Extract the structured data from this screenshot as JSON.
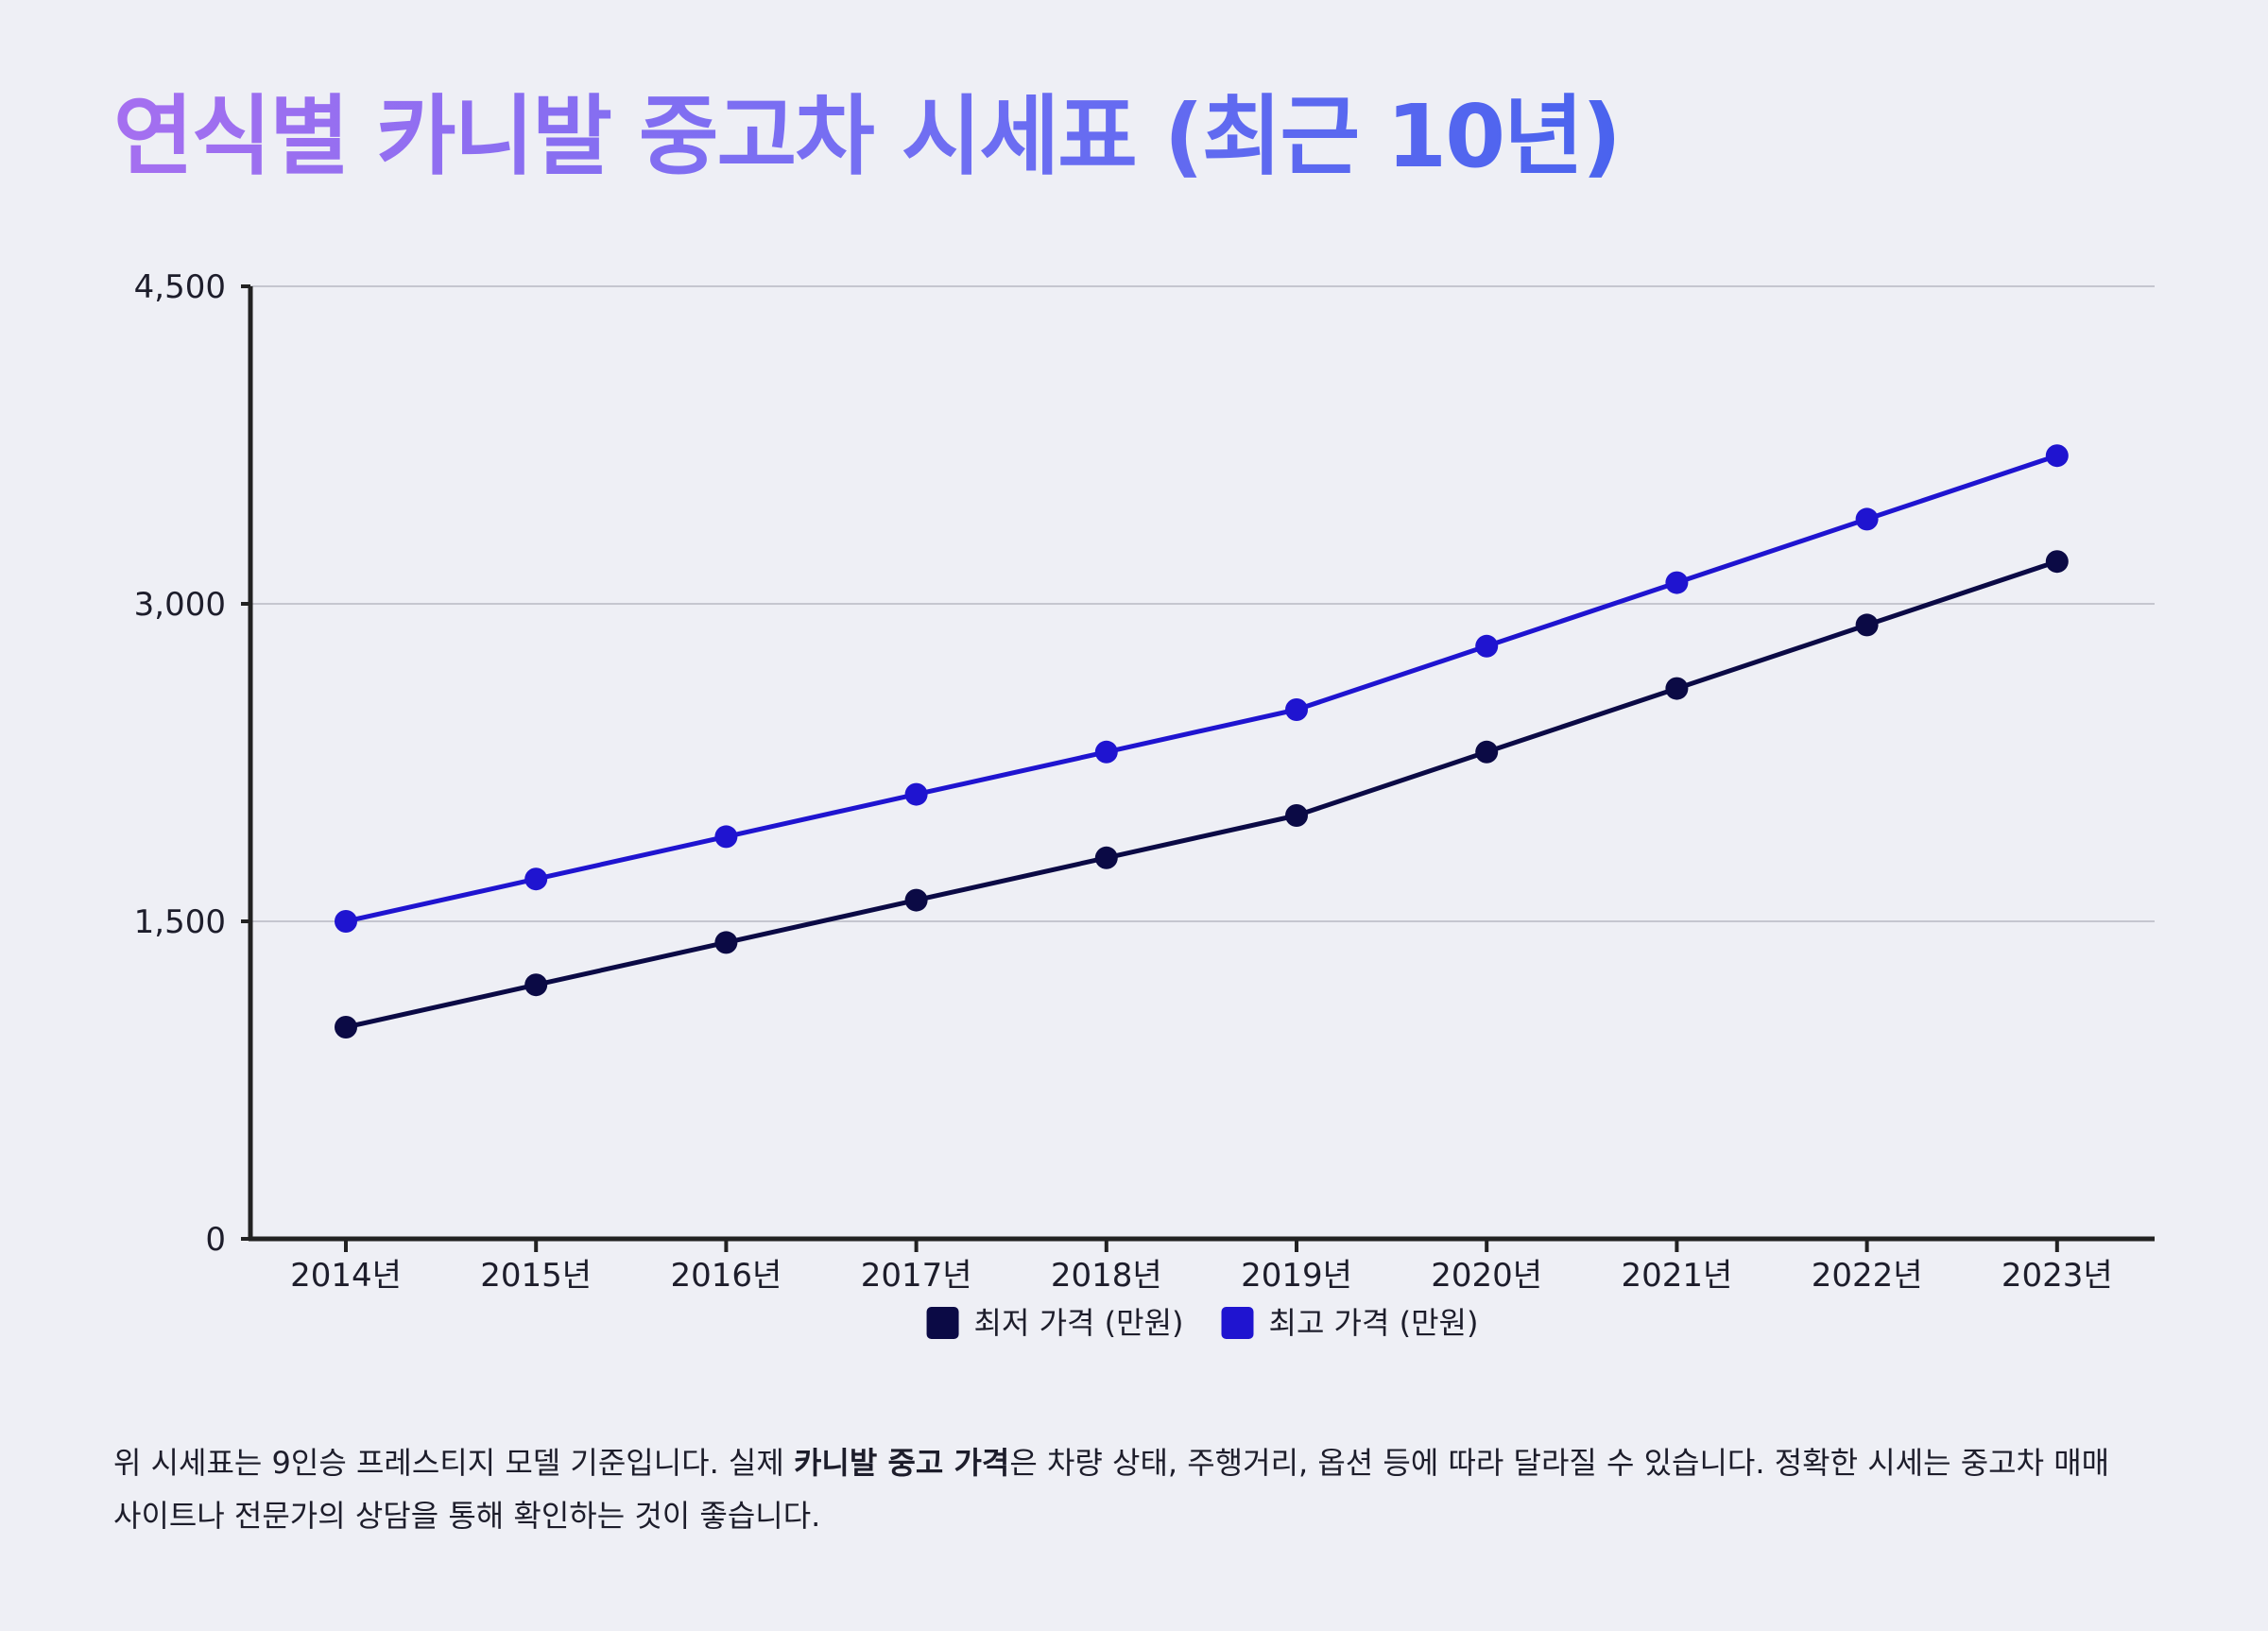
{
  "title": "연식별 카니발 중고차 시세표 (최근 10년)",
  "chart_data": {
    "type": "line",
    "title": "연식별 카니발 중고차 시세표 (최근 10년)",
    "xlabel": "",
    "ylabel": "",
    "categories": [
      "2014년",
      "2015년",
      "2016년",
      "2017년",
      "2018년",
      "2019년",
      "2020년",
      "2021년",
      "2022년",
      "2023년"
    ],
    "ylim": [
      0,
      4500
    ],
    "yticks": [
      0,
      1500,
      3000,
      4500
    ],
    "ytick_labels": [
      "0",
      "1,500",
      "3,000",
      "4,500"
    ],
    "grid": true,
    "legend_position": "bottom-center",
    "series": [
      {
        "name": "최저 가격 (만원)",
        "color": "#0b0a45",
        "values": [
          1000,
          1200,
          1400,
          1600,
          1800,
          2000,
          2300,
          2600,
          2900,
          3200
        ]
      },
      {
        "name": "최고 가격 (만원)",
        "color": "#1f14d0",
        "values": [
          1500,
          1700,
          1900,
          2100,
          2300,
          2500,
          2800,
          3100,
          3400,
          3700
        ]
      }
    ]
  },
  "note": {
    "before": "위 시세표는 9인승 프레스티지 모델 기준입니다. 실제 ",
    "emphasis": "카니발 중고 가격",
    "after": "은 차량 상태, 주행거리, 옵션 등에 따라 달라질 수 있습니다. 정확한 시세는 중고차 매매 사이트나 전문가의 상담을 통해 확인하는 것이 좋습니다."
  }
}
